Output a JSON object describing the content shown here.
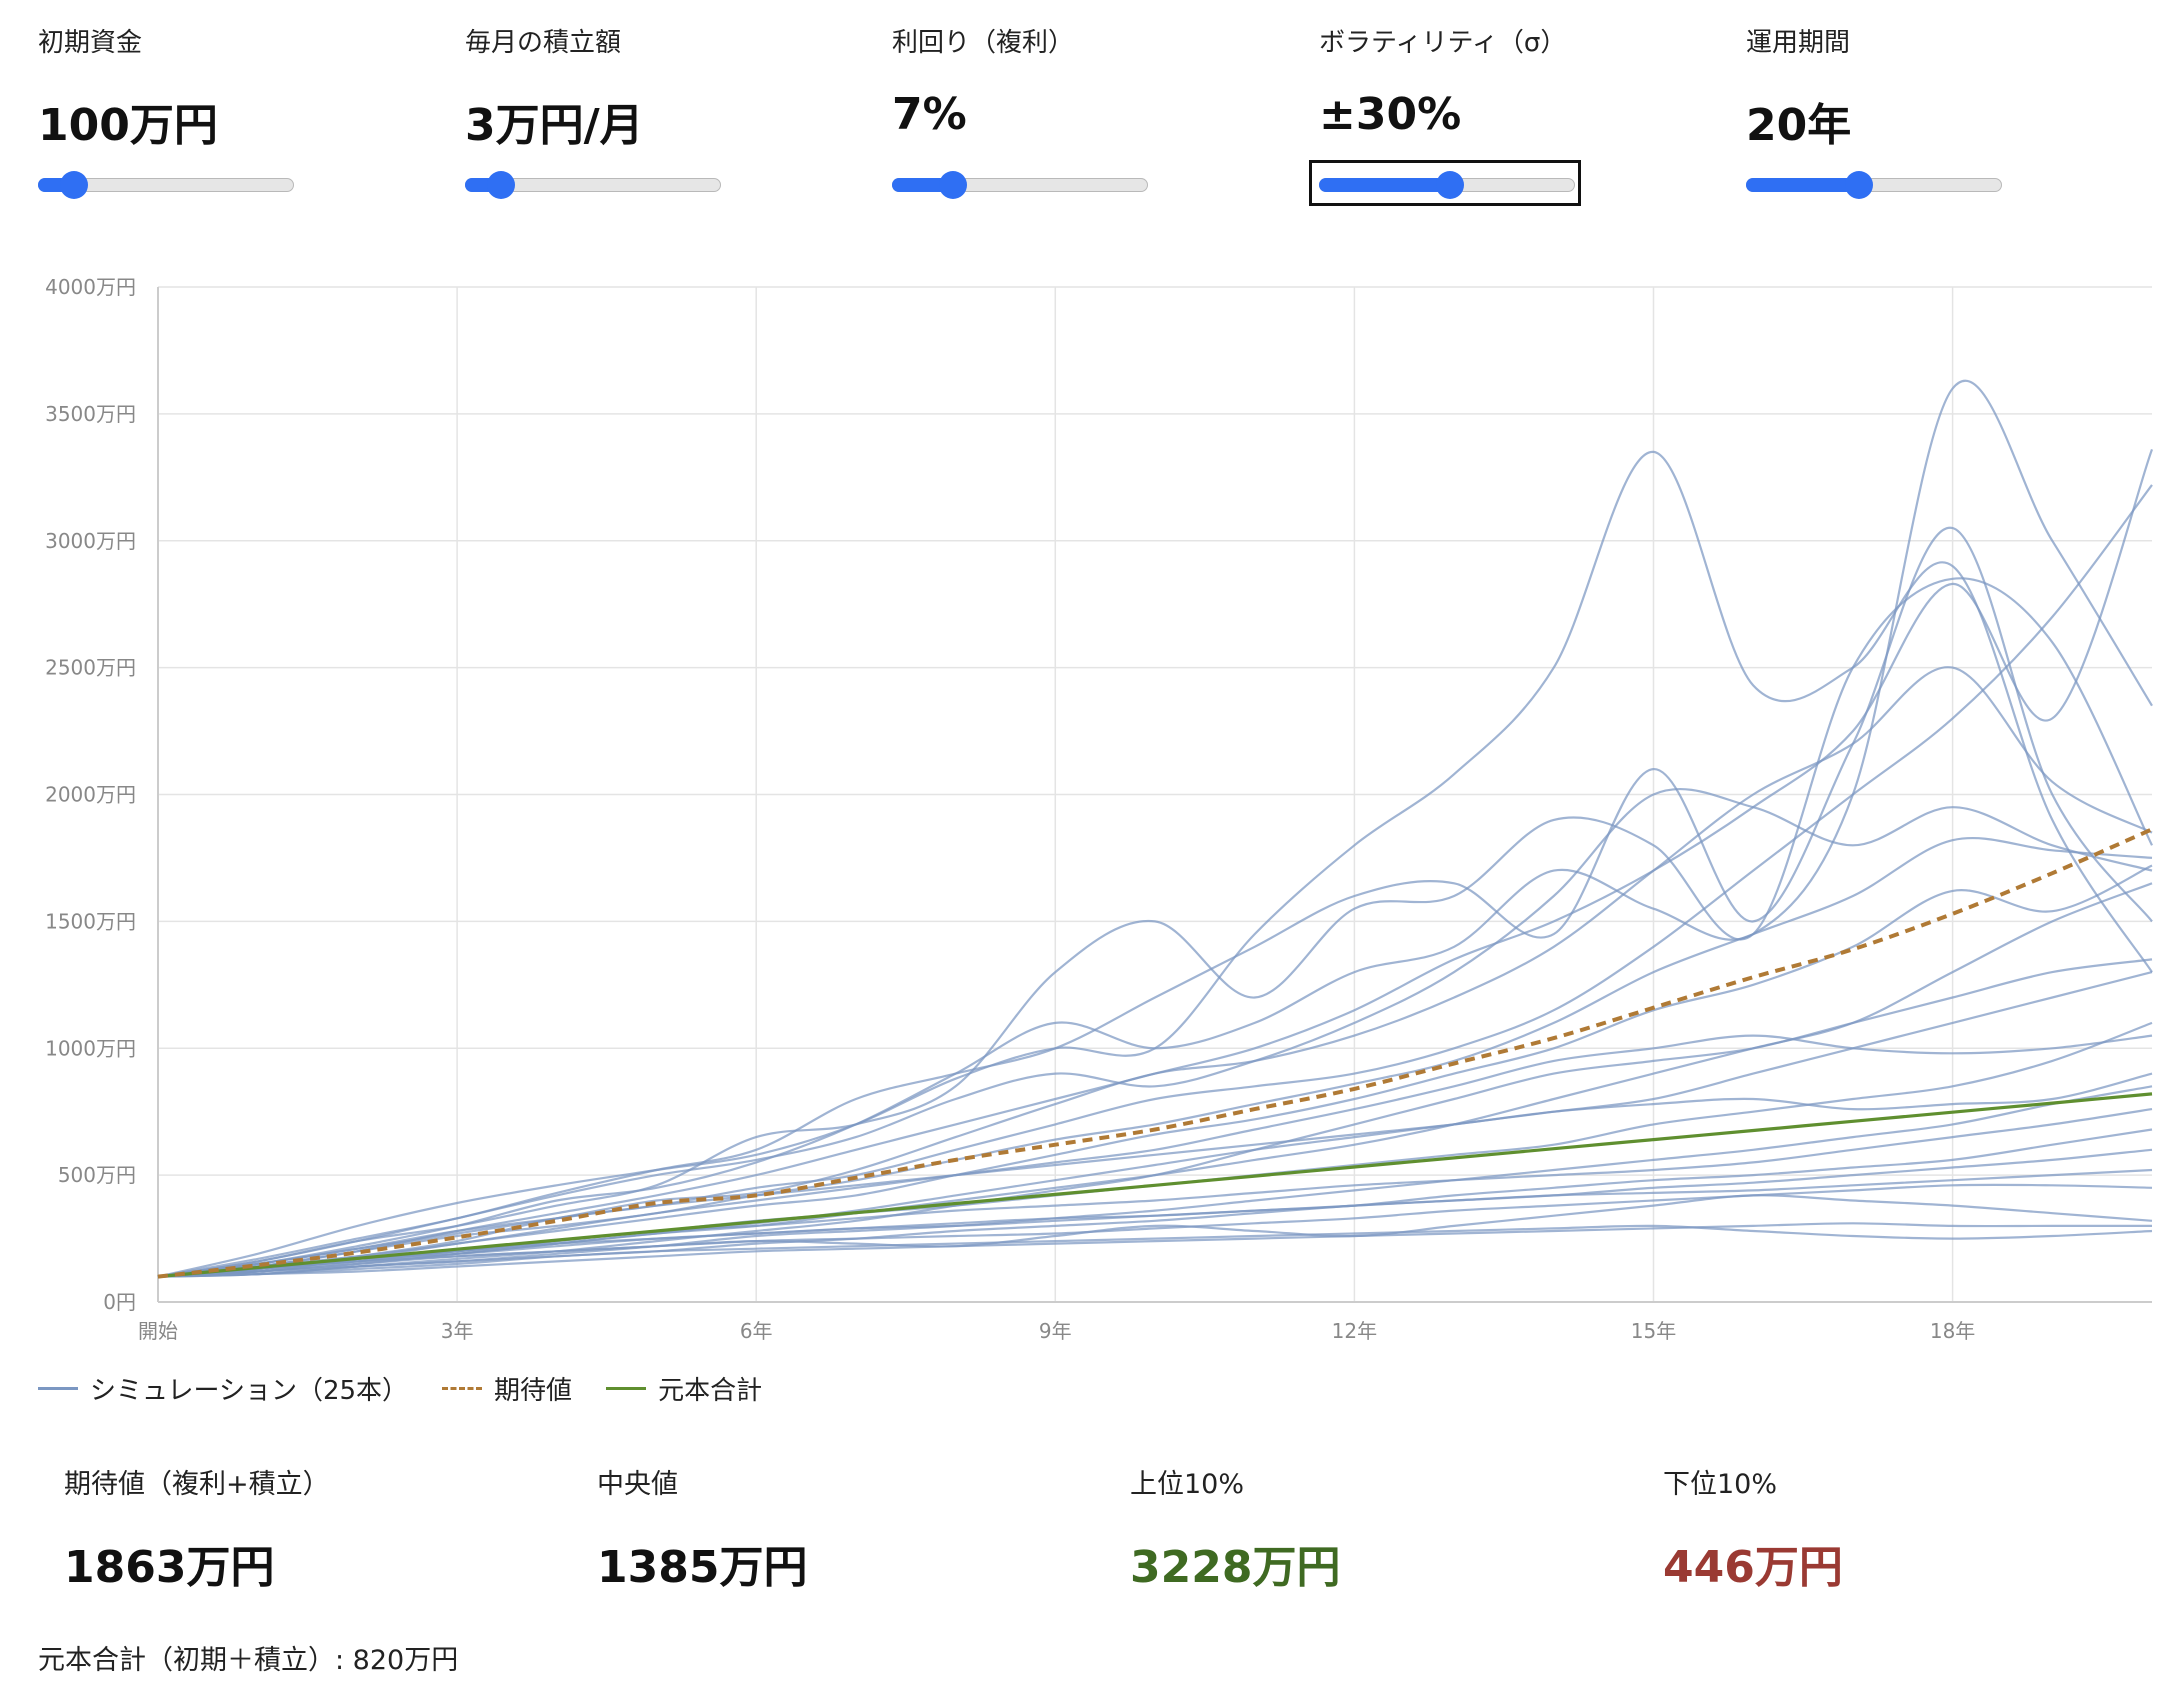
{
  "controls": [
    {
      "label": "初期資金",
      "value": "100万円",
      "slider_fraction": 0.14,
      "focused": false
    },
    {
      "label": "毎月の積立額",
      "value": "3万円/月",
      "slider_fraction": 0.14,
      "focused": false
    },
    {
      "label": "利回り（複利）",
      "value": "7%",
      "slider_fraction": 0.24,
      "focused": false
    },
    {
      "label": "ボラティリティ（σ）",
      "value": "±30%",
      "slider_fraction": 0.51,
      "focused": true
    },
    {
      "label": "運用期間",
      "value": "20年",
      "slider_fraction": 0.44,
      "focused": false
    }
  ],
  "legend": {
    "simulation": "シミュレーション（25本）",
    "expected": "期待値",
    "principal": "元本合計"
  },
  "stats": [
    {
      "label": "期待値（複利+積立）",
      "value": "1863万円",
      "color": "#111111"
    },
    {
      "label": "中央値",
      "value": "1385万円",
      "color": "#111111"
    },
    {
      "label": "上位10%",
      "value": "3228万円",
      "color": "#3f6a22"
    },
    {
      "label": "下位10%",
      "value": "446万円",
      "color": "#9a3a33"
    }
  ],
  "footer": "元本合計（初期＋積立）: 820万円",
  "colors": {
    "simulation": "#7b97c2",
    "expected": "#b07a35",
    "principal": "#5f8f2f",
    "slider": "#2f6ff3"
  },
  "chart_data": {
    "type": "line",
    "x": [
      0,
      1,
      2,
      3,
      4,
      5,
      6,
      7,
      8,
      9,
      10,
      11,
      12,
      13,
      14,
      15,
      16,
      17,
      18,
      19,
      20
    ],
    "x_tick_values": [
      0,
      3,
      6,
      9,
      12,
      15,
      18
    ],
    "x_tick_labels": [
      "開始",
      "3年",
      "6年",
      "9年",
      "12年",
      "15年",
      "18年"
    ],
    "y_tick_values": [
      0,
      500,
      1000,
      1500,
      2000,
      2500,
      3000,
      3500,
      4000
    ],
    "y_tick_labels": [
      "0円",
      "500万円",
      "1000万円",
      "1500万円",
      "2000万円",
      "2500万円",
      "3000万円",
      "3500万円",
      "4000万円"
    ],
    "ylim": [
      0,
      4000
    ],
    "xlim": [
      0,
      20
    ],
    "grid": true,
    "legend_position": "bottom-left",
    "series": [
      {
        "name": "期待値",
        "style": "dashed",
        "values": [
          100,
          145,
          195,
          255,
          320,
          390,
          420,
          490,
          560,
          620,
          680,
          760,
          840,
          940,
          1040,
          1160,
          1280,
          1390,
          1530,
          1690,
          1863
        ]
      },
      {
        "name": "元本合計",
        "style": "solid",
        "values": [
          100,
          136,
          172,
          208,
          244,
          280,
          316,
          352,
          388,
          424,
          460,
          496,
          532,
          568,
          604,
          640,
          676,
          712,
          748,
          784,
          820
        ]
      }
    ],
    "simulations": [
      [
        100,
        190,
        300,
        390,
        460,
        520,
        580,
        700,
        880,
        1000,
        1000,
        1450,
        1800,
        2080,
        2500,
        3350,
        2430,
        2500,
        2900,
        1900,
        1300
      ],
      [
        100,
        150,
        220,
        300,
        400,
        450,
        550,
        700,
        900,
        1100,
        1000,
        1100,
        1300,
        1400,
        1700,
        1550,
        1450,
        2000,
        3600,
        3000,
        2350
      ],
      [
        100,
        170,
        250,
        330,
        430,
        520,
        600,
        800,
        900,
        1000,
        1200,
        1400,
        1600,
        1650,
        1450,
        2100,
        1500,
        2200,
        3050,
        2000,
        1500
      ],
      [
        100,
        160,
        240,
        300,
        380,
        460,
        650,
        700,
        850,
        1300,
        1500,
        1200,
        1550,
        1600,
        1900,
        1800,
        1450,
        2500,
        2850,
        2600,
        1800
      ],
      [
        100,
        140,
        200,
        280,
        350,
        420,
        500,
        600,
        700,
        800,
        900,
        1000,
        1150,
        1350,
        1500,
        1700,
        1950,
        2250,
        2830,
        2300,
        3360
      ],
      [
        100,
        130,
        180,
        240,
        330,
        380,
        450,
        500,
        600,
        700,
        800,
        850,
        900,
        1000,
        1150,
        1400,
        1700,
        2000,
        2300,
        2700,
        3220
      ],
      [
        100,
        150,
        210,
        270,
        330,
        400,
        430,
        520,
        650,
        780,
        900,
        950,
        1050,
        1200,
        1400,
        1700,
        2000,
        2200,
        2500,
        2050,
        1850
      ],
      [
        100,
        160,
        240,
        330,
        420,
        500,
        560,
        650,
        800,
        900,
        850,
        950,
        1100,
        1300,
        1600,
        2000,
        1950,
        1800,
        1950,
        1800,
        1700
      ],
      [
        100,
        140,
        200,
        260,
        300,
        350,
        420,
        480,
        560,
        640,
        700,
        780,
        860,
        950,
        1100,
        1300,
        1450,
        1600,
        1820,
        1780,
        1750
      ],
      [
        100,
        120,
        170,
        230,
        280,
        330,
        380,
        420,
        500,
        580,
        660,
        720,
        800,
        900,
        1000,
        1150,
        1250,
        1400,
        1620,
        1540,
        1720
      ],
      [
        100,
        130,
        160,
        190,
        230,
        270,
        300,
        350,
        400,
        450,
        500,
        560,
        620,
        700,
        800,
        900,
        1000,
        1100,
        1300,
        1500,
        1650
      ],
      [
        100,
        110,
        140,
        170,
        200,
        240,
        280,
        320,
        380,
        440,
        500,
        600,
        700,
        800,
        900,
        950,
        1000,
        1100,
        1200,
        1300,
        1350
      ],
      [
        100,
        120,
        150,
        190,
        230,
        270,
        310,
        360,
        420,
        480,
        540,
        600,
        650,
        700,
        750,
        800,
        900,
        1000,
        1100,
        1200,
        1300
      ],
      [
        100,
        140,
        180,
        230,
        290,
        350,
        400,
        450,
        500,
        550,
        600,
        680,
        760,
        850,
        950,
        1000,
        1050,
        1000,
        980,
        1000,
        1050
      ],
      [
        100,
        130,
        170,
        200,
        240,
        280,
        320,
        350,
        380,
        420,
        460,
        500,
        540,
        580,
        620,
        700,
        750,
        800,
        850,
        950,
        1100
      ],
      [
        100,
        150,
        210,
        280,
        330,
        380,
        420,
        460,
        500,
        540,
        580,
        620,
        660,
        700,
        750,
        780,
        800,
        760,
        780,
        800,
        900
      ],
      [
        100,
        110,
        140,
        160,
        190,
        220,
        260,
        280,
        300,
        330,
        360,
        400,
        440,
        480,
        520,
        560,
        600,
        650,
        700,
        780,
        850
      ],
      [
        100,
        120,
        160,
        200,
        240,
        280,
        300,
        330,
        360,
        380,
        400,
        430,
        460,
        480,
        500,
        520,
        550,
        600,
        650,
        700,
        760
      ],
      [
        100,
        130,
        170,
        190,
        220,
        250,
        270,
        290,
        300,
        320,
        340,
        360,
        380,
        420,
        450,
        480,
        500,
        530,
        560,
        620,
        680
      ],
      [
        100,
        110,
        130,
        150,
        180,
        200,
        230,
        250,
        280,
        300,
        320,
        350,
        380,
        400,
        420,
        450,
        470,
        500,
        530,
        560,
        600
      ],
      [
        100,
        140,
        170,
        200,
        230,
        250,
        270,
        290,
        310,
        330,
        340,
        360,
        380,
        400,
        420,
        430,
        440,
        460,
        480,
        500,
        520
      ],
      [
        100,
        120,
        150,
        180,
        200,
        220,
        240,
        250,
        260,
        270,
        290,
        310,
        330,
        360,
        380,
        400,
        420,
        440,
        460,
        460,
        450
      ],
      [
        100,
        130,
        160,
        180,
        200,
        220,
        240,
        230,
        220,
        260,
        300,
        280,
        260,
        300,
        340,
        380,
        420,
        400,
        380,
        350,
        320
      ],
      [
        100,
        110,
        120,
        140,
        160,
        180,
        200,
        210,
        220,
        230,
        240,
        250,
        260,
        270,
        280,
        290,
        300,
        310,
        300,
        300,
        300
      ],
      [
        100,
        120,
        140,
        160,
        180,
        200,
        210,
        220,
        230,
        240,
        250,
        260,
        270,
        280,
        290,
        300,
        280,
        260,
        250,
        260,
        280
      ]
    ]
  }
}
